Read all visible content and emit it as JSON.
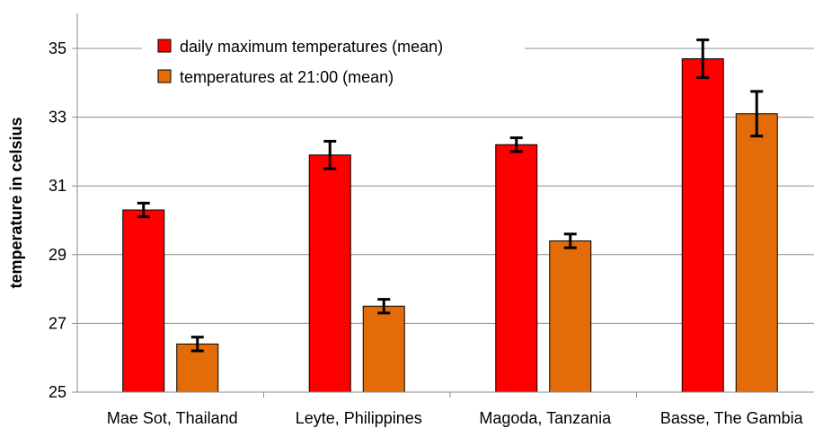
{
  "chart_data": {
    "type": "bar",
    "title": "",
    "xlabel": "",
    "ylabel": "temperature in celsius",
    "ylim": [
      25,
      36
    ],
    "yticks": [
      25,
      27,
      29,
      31,
      33,
      35
    ],
    "grid": "horizontal",
    "legend_position": "top-left",
    "categories": [
      "Mae Sot, Thailand",
      "Leyte, Philippines",
      "Magoda, Tanzania",
      "Basse, The Gambia"
    ],
    "series": [
      {
        "name": "daily maximum temperatures (mean)",
        "color": "#ff0000",
        "values": [
          30.3,
          31.9,
          32.2,
          34.7
        ],
        "error": [
          0.2,
          0.4,
          0.2,
          0.55
        ]
      },
      {
        "name": "temperatures at 21:00 (mean)",
        "color": "#e36c09",
        "values": [
          26.4,
          27.5,
          29.4,
          33.1
        ],
        "error": [
          0.2,
          0.2,
          0.2,
          0.65
        ]
      }
    ]
  }
}
